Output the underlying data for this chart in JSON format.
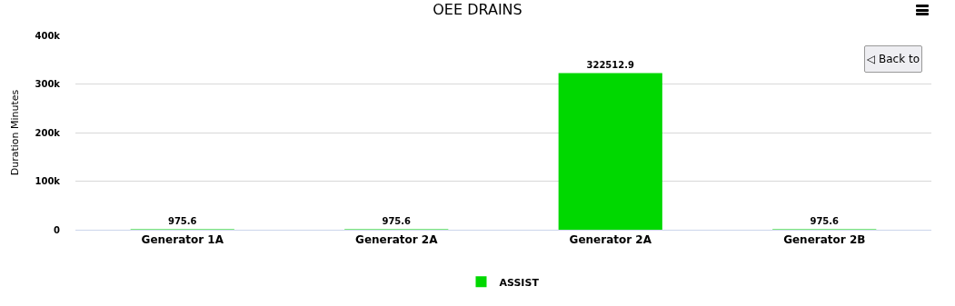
{
  "chart_data": {
    "type": "bar",
    "title": "OEE DRAINS",
    "ylabel": "Duration Minutes",
    "categories": [
      "Generator 1A",
      "Generator 2A",
      "Generator 2A",
      "Generator 2B"
    ],
    "series": [
      {
        "name": "ASSIST",
        "color": "#00d800",
        "values": [
          975.6,
          975.6,
          322512.9,
          975.6
        ]
      }
    ],
    "ylim": [
      0,
      400000
    ],
    "yticks": [
      {
        "value": 0,
        "label": "0"
      },
      {
        "value": 100000,
        "label": "100k"
      },
      {
        "value": 200000,
        "label": "200k"
      },
      {
        "value": 300000,
        "label": "300k"
      },
      {
        "value": 400000,
        "label": "400k"
      }
    ],
    "grid": "y",
    "legend": "bottom",
    "data_labels": true,
    "annotations": [
      "◁ Back to"
    ]
  }
}
